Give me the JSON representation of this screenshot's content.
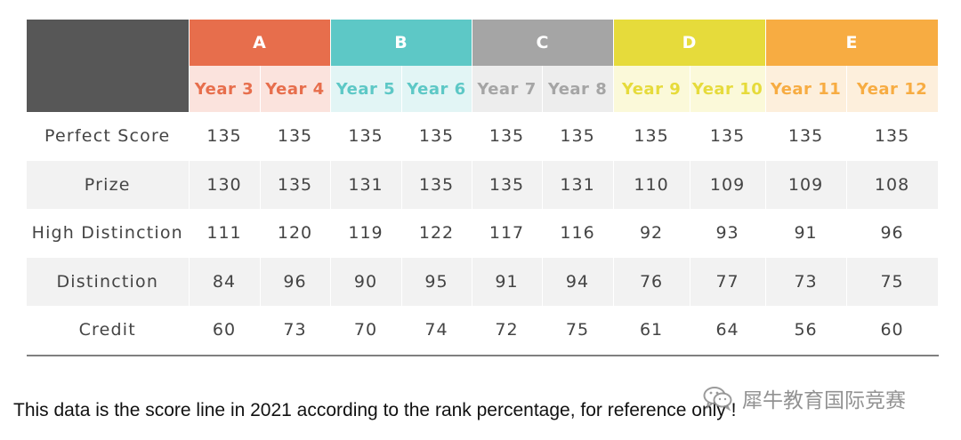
{
  "colors": {
    "corner": "#575757",
    "A": {
      "head": "#e76e4c",
      "sub": "#fbe3dd",
      "text": "#e76e4c"
    },
    "B": {
      "head": "#5dc8c6",
      "sub": "#e2f5f5",
      "text": "#5dc8c6"
    },
    "C": {
      "head": "#a5a5a5",
      "sub": "#ededed",
      "text": "#a5a5a5"
    },
    "D": {
      "head": "#e6db3b",
      "sub": "#fbf9d9",
      "text": "#e6db3b"
    },
    "E": {
      "head": "#f7ac42",
      "sub": "#fdefdc",
      "text": "#f7ac42"
    }
  },
  "groups": [
    {
      "label": "A",
      "years": [
        "Year 3",
        "Year 4"
      ]
    },
    {
      "label": "B",
      "years": [
        "Year 5",
        "Year 6"
      ]
    },
    {
      "label": "C",
      "years": [
        "Year 7",
        "Year 8"
      ]
    },
    {
      "label": "D",
      "years": [
        "Year 9",
        "Year 10"
      ]
    },
    {
      "label": "E",
      "years": [
        "Year 11",
        "Year 12"
      ]
    }
  ],
  "rows": [
    {
      "label": "Perfect Score",
      "values": [
        "135",
        "135",
        "135",
        "135",
        "135",
        "135",
        "135",
        "135",
        "135",
        "135"
      ]
    },
    {
      "label": "Prize",
      "values": [
        "130",
        "135",
        "131",
        "135",
        "135",
        "131",
        "110",
        "109",
        "109",
        "108"
      ]
    },
    {
      "label": "High Distinction",
      "values": [
        "111",
        "120",
        "119",
        "122",
        "117",
        "116",
        "92",
        "93",
        "91",
        "96"
      ]
    },
    {
      "label": "Distinction",
      "values": [
        "84",
        "96",
        "90",
        "95",
        "91",
        "94",
        "76",
        "77",
        "73",
        "75"
      ]
    },
    {
      "label": "Credit",
      "values": [
        "60",
        "73",
        "70",
        "74",
        "72",
        "75",
        "61",
        "64",
        "56",
        "60"
      ]
    }
  ],
  "note": "This data is the score line in 2021 according to the rank percentage, for reference only !",
  "watermark": {
    "text": "犀牛教育国际竞赛",
    "icon": "wechat-icon"
  }
}
